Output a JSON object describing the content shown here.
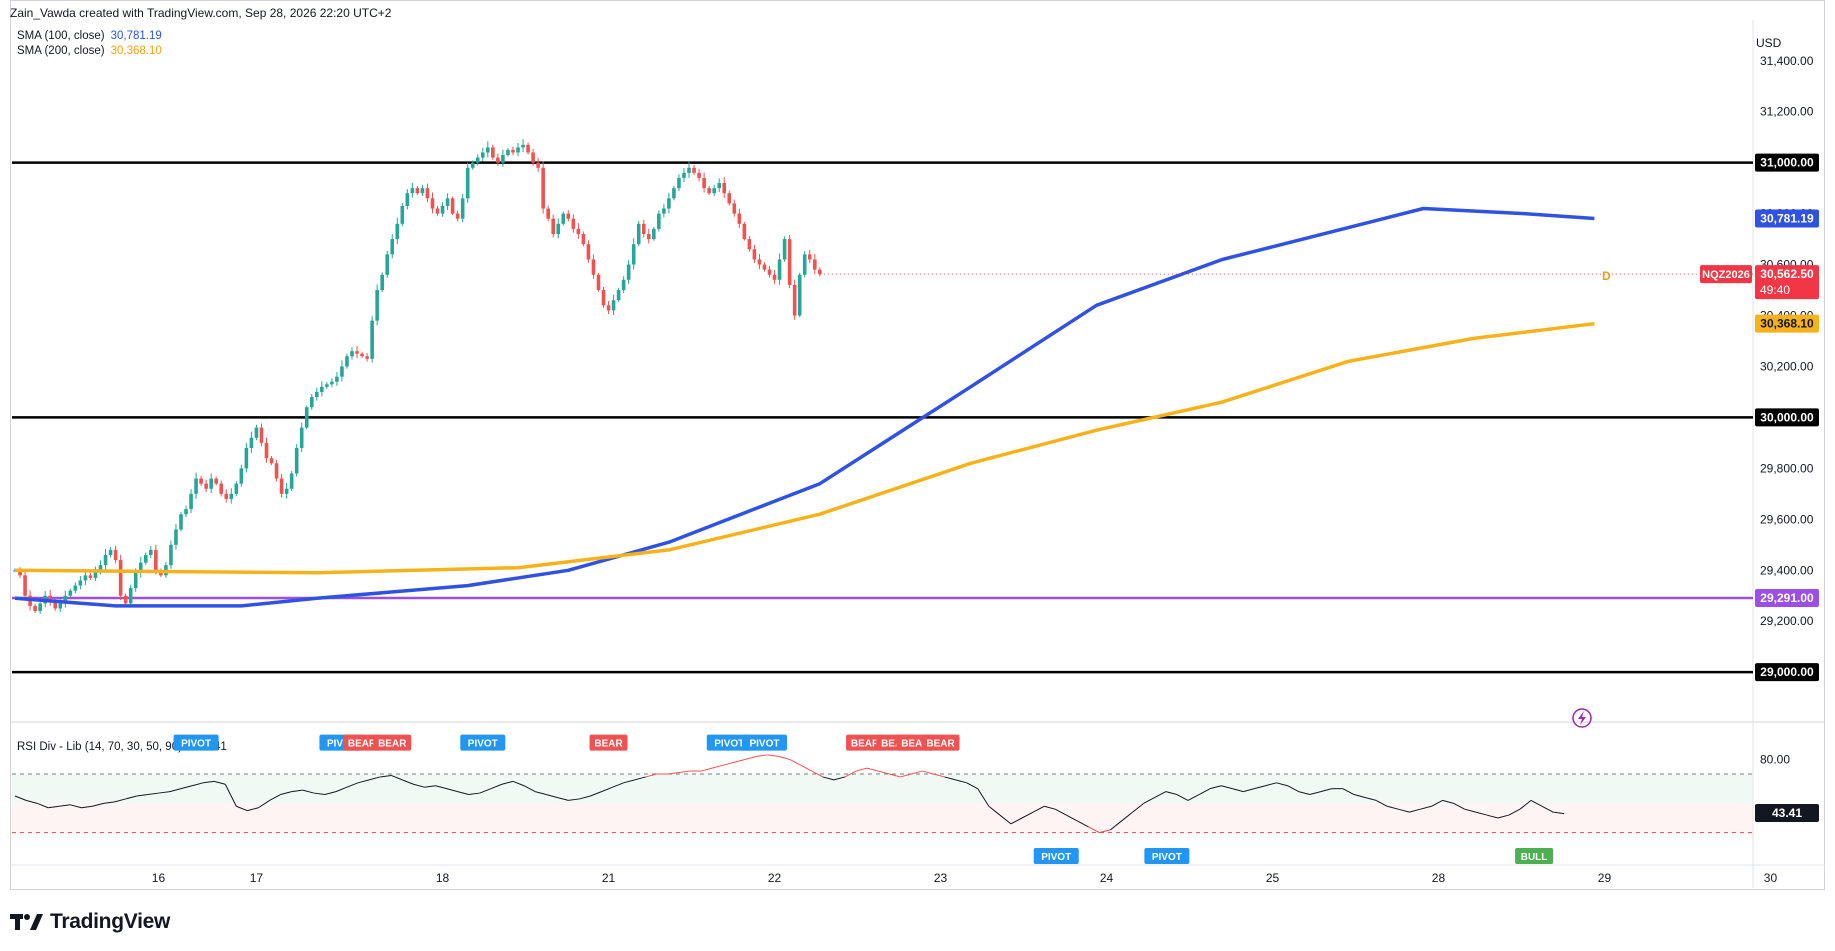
{
  "header": {
    "credit": "Zain_Vawda created with TradingView.com, Sep 28, 2026 22:20 UTC+2"
  },
  "legend": {
    "sma100_label": "SMA (100, close)",
    "sma100_value": "30,781.19",
    "sma200_label": "SMA (200, close)",
    "sma200_value": "30,368.10"
  },
  "currency": "USD",
  "brand": {
    "name": "TradingView"
  },
  "colors": {
    "up": "#26a69a",
    "down": "#ef5350",
    "sma100": "#2f52e0",
    "sma200": "#f5b21b",
    "support": "#9c4fe6",
    "level": "#000000",
    "symbol_badge": "#f23645",
    "pivot": "#2196f3",
    "bear": "#f05252",
    "bull": "#4caf50"
  },
  "chart_data": [
    {
      "type": "candlestick",
      "symbol": "NQZ2026",
      "last_price": "30,562.50",
      "countdown": "49:40",
      "marker": "D",
      "ylim": [
        28930,
        31560
      ],
      "y_ticks": [
        "31,400.00",
        "31,200.00",
        "31,000.00",
        "30,800.00",
        "30,600.00",
        "30,400.00",
        "30,200.00",
        "30,000.00",
        "29,800.00",
        "29,600.00",
        "29,400.00",
        "29,200.00",
        "29,000.00"
      ],
      "x_ticks": [
        "16",
        "17",
        "18",
        "21",
        "22",
        "23",
        "24",
        "25",
        "28",
        "29",
        "30"
      ],
      "x_tick_index": [
        15,
        48,
        85,
        118,
        151,
        184,
        217,
        250,
        283,
        316,
        349
      ],
      "horizontal_levels": [
        {
          "label": "31,000.00",
          "value": 31000,
          "color": "level"
        },
        {
          "label": "30,000.00",
          "value": 30000,
          "color": "level"
        },
        {
          "label": "29,291.00",
          "value": 29291,
          "color": "support"
        },
        {
          "label": "29,000.00",
          "value": 29000,
          "color": "level"
        }
      ],
      "series": [
        {
          "name": "SMA (100, close)",
          "label": "30,781.19",
          "points": [
            [
              0,
              29290
            ],
            [
              20,
              29260
            ],
            [
              45,
              29260
            ],
            [
              60,
              29290
            ],
            [
              90,
              29340
            ],
            [
              110,
              29400
            ],
            [
              130,
              29510
            ],
            [
              160,
              29740
            ],
            [
              190,
              30120
            ],
            [
              215,
              30440
            ],
            [
              240,
              30620
            ],
            [
              270,
              30770
            ],
            [
              280,
              30820
            ],
            [
              300,
              30800
            ],
            [
              314,
              30781
            ]
          ]
        },
        {
          "name": "SMA (200, close)",
          "label": "30,368.10",
          "points": [
            [
              0,
              29400
            ],
            [
              60,
              29390
            ],
            [
              100,
              29410
            ],
            [
              130,
              29480
            ],
            [
              160,
              29620
            ],
            [
              190,
              29820
            ],
            [
              215,
              29950
            ],
            [
              240,
              30060
            ],
            [
              265,
              30220
            ],
            [
              290,
              30310
            ],
            [
              314,
              30368
            ]
          ]
        }
      ],
      "candle_path": [
        29400,
        29380,
        29300,
        29260,
        29240,
        29270,
        29300,
        29280,
        29250,
        29270,
        29300,
        29320,
        29340,
        29360,
        29380,
        29370,
        29400,
        29420,
        29460,
        29480,
        29440,
        29300,
        29270,
        29330,
        29390,
        29430,
        29460,
        29480,
        29400,
        29380,
        29420,
        29500,
        29560,
        29620,
        29640,
        29700,
        29760,
        29740,
        29720,
        29760,
        29740,
        29700,
        29680,
        29700,
        29740,
        29800,
        29880,
        29920,
        29960,
        29900,
        29840,
        29820,
        29760,
        29700,
        29720,
        29780,
        29880,
        29960,
        30040,
        30080,
        30100,
        30120,
        30130,
        30140,
        30160,
        30200,
        30240,
        30260,
        30250,
        30240,
        30230,
        30380,
        30500,
        30560,
        30640,
        30700,
        30760,
        30830,
        30880,
        30900,
        30880,
        30900,
        30860,
        30820,
        30800,
        30830,
        30860,
        30800,
        30780,
        30860,
        30980,
        31000,
        31020,
        31040,
        31060,
        31020,
        31000,
        31030,
        31050,
        31040,
        31060,
        31070,
        31040,
        31000,
        30980,
        30820,
        30780,
        30720,
        30760,
        30800,
        30780,
        30740,
        30720,
        30680,
        30620,
        30560,
        30500,
        30440,
        30420,
        30460,
        30500,
        30540,
        30600,
        30680,
        30760,
        30720,
        30700,
        30740,
        30800,
        30820,
        30860,
        30900,
        30940,
        30960,
        30980,
        30960,
        30940,
        30900,
        30880,
        30900,
        30920,
        30880,
        30840,
        30800,
        30760,
        30700,
        30660,
        30620,
        30600,
        30580,
        30560,
        30540,
        30620,
        30700,
        30520,
        30400,
        30560,
        30640,
        30620,
        30580,
        30562
      ]
    },
    {
      "type": "line",
      "indicator_label": "RSI Div - Lib (14, 70, 30, 50, 90)",
      "indicator_value": "43.41",
      "ylim": [
        10,
        100
      ],
      "y_ticks": [
        "80.00"
      ],
      "bands": [
        70,
        50,
        30
      ],
      "values": [
        55,
        52,
        50,
        47,
        48,
        49,
        47,
        48,
        50,
        51,
        53,
        55,
        56,
        57,
        58,
        60,
        62,
        64,
        65,
        63,
        48,
        45,
        47,
        52,
        56,
        58,
        59,
        57,
        56,
        58,
        61,
        64,
        66,
        68,
        69,
        66,
        63,
        61,
        62,
        60,
        58,
        56,
        57,
        60,
        63,
        65,
        62,
        58,
        56,
        54,
        52,
        53,
        55,
        58,
        61,
        64,
        66,
        68,
        70,
        70,
        71,
        72,
        72,
        74,
        76,
        78,
        80,
        82,
        83,
        82,
        80,
        76,
        72,
        68,
        66,
        68,
        72,
        74,
        72,
        70,
        68,
        70,
        72,
        70,
        68,
        66,
        64,
        60,
        48,
        42,
        36,
        40,
        44,
        48,
        46,
        42,
        38,
        34,
        30,
        32,
        38,
        44,
        50,
        54,
        58,
        56,
        52,
        56,
        60,
        62,
        60,
        58,
        60,
        62,
        64,
        62,
        58,
        56,
        58,
        60,
        60,
        56,
        54,
        52,
        48,
        46,
        44,
        46,
        48,
        52,
        50,
        46,
        44,
        42,
        40,
        42,
        46,
        52,
        48,
        44,
        43
      ],
      "signals": [
        {
          "label": "PIVOT",
          "kind": "pivot",
          "idx": 36,
          "pos": "above"
        },
        {
          "label": "PIVOT",
          "kind": "pivot",
          "idx": 65,
          "pos": "above"
        },
        {
          "label": "BEAR",
          "kind": "bear",
          "idx": 69,
          "pos": "above"
        },
        {
          "label": "BEAR",
          "kind": "bear",
          "idx": 75,
          "pos": "above"
        },
        {
          "label": "PIVOT",
          "kind": "pivot",
          "idx": 93,
          "pos": "above"
        },
        {
          "label": "BEAR",
          "kind": "bear",
          "idx": 118,
          "pos": "above"
        },
        {
          "label": "PIVOT",
          "kind": "pivot",
          "idx": 142,
          "pos": "above"
        },
        {
          "label": "PIVOT",
          "kind": "pivot",
          "idx": 149,
          "pos": "above"
        },
        {
          "label": "BEAR",
          "kind": "bear",
          "idx": 169,
          "pos": "above"
        },
        {
          "label": "BEAR",
          "kind": "bear",
          "idx": 175,
          "pos": "above"
        },
        {
          "label": "BEAR",
          "kind": "bear",
          "idx": 179,
          "pos": "above"
        },
        {
          "label": "BEAR",
          "kind": "bear",
          "idx": 184,
          "pos": "above"
        },
        {
          "label": "PIVOT",
          "kind": "pivot",
          "idx": 207,
          "pos": "below"
        },
        {
          "label": "PIVOT",
          "kind": "pivot",
          "idx": 229,
          "pos": "below"
        },
        {
          "label": "BULL",
          "kind": "bull",
          "idx": 302,
          "pos": "below"
        }
      ]
    }
  ]
}
